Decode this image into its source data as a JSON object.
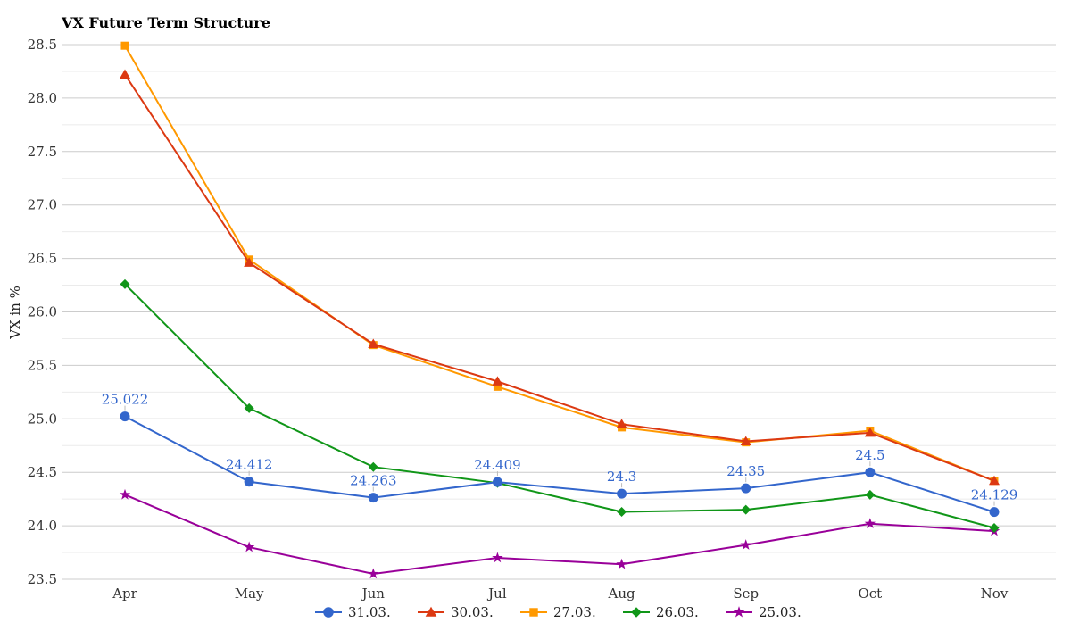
{
  "chart_data": {
    "type": "line",
    "title": "VX Future Term Structure",
    "xlabel": "",
    "ylabel": "VX in %",
    "categories": [
      "Apr",
      "May",
      "Jun",
      "Jul",
      "Aug",
      "Sep",
      "Oct",
      "Nov"
    ],
    "ylim": [
      23.5,
      28.5
    ],
    "yticks": [
      "23.5",
      "24.0",
      "24.5",
      "25.0",
      "25.5",
      "26.0",
      "26.5",
      "27.0",
      "27.5",
      "28.0",
      "28.5"
    ],
    "grid": true,
    "legend_position": "bottom",
    "series": [
      {
        "name": "31.03.",
        "color": "#3366cc",
        "marker": "circle",
        "values": [
          25.022,
          24.412,
          24.263,
          24.409,
          24.3,
          24.35,
          24.5,
          24.129
        ],
        "labels": [
          "25.022",
          "24.412",
          "24.263",
          "24.409",
          "24.3",
          "24.35",
          "24.5",
          "24.129"
        ]
      },
      {
        "name": "30.03.",
        "color": "#dc3912",
        "marker": "triangle",
        "values": [
          28.22,
          26.46,
          25.7,
          25.35,
          24.95,
          24.79,
          24.87,
          24.42
        ]
      },
      {
        "name": "27.03.",
        "color": "#ff9900",
        "marker": "square",
        "values": [
          28.49,
          26.49,
          25.69,
          25.3,
          24.92,
          24.78,
          24.89,
          24.42
        ]
      },
      {
        "name": "26.03.",
        "color": "#109618",
        "marker": "diamond",
        "values": [
          26.26,
          25.1,
          24.55,
          24.4,
          24.13,
          24.15,
          24.29,
          23.98
        ]
      },
      {
        "name": "25.03.",
        "color": "#990099",
        "marker": "star",
        "values": [
          24.29,
          23.8,
          23.55,
          23.7,
          23.64,
          23.82,
          24.02,
          23.95
        ]
      }
    ]
  }
}
